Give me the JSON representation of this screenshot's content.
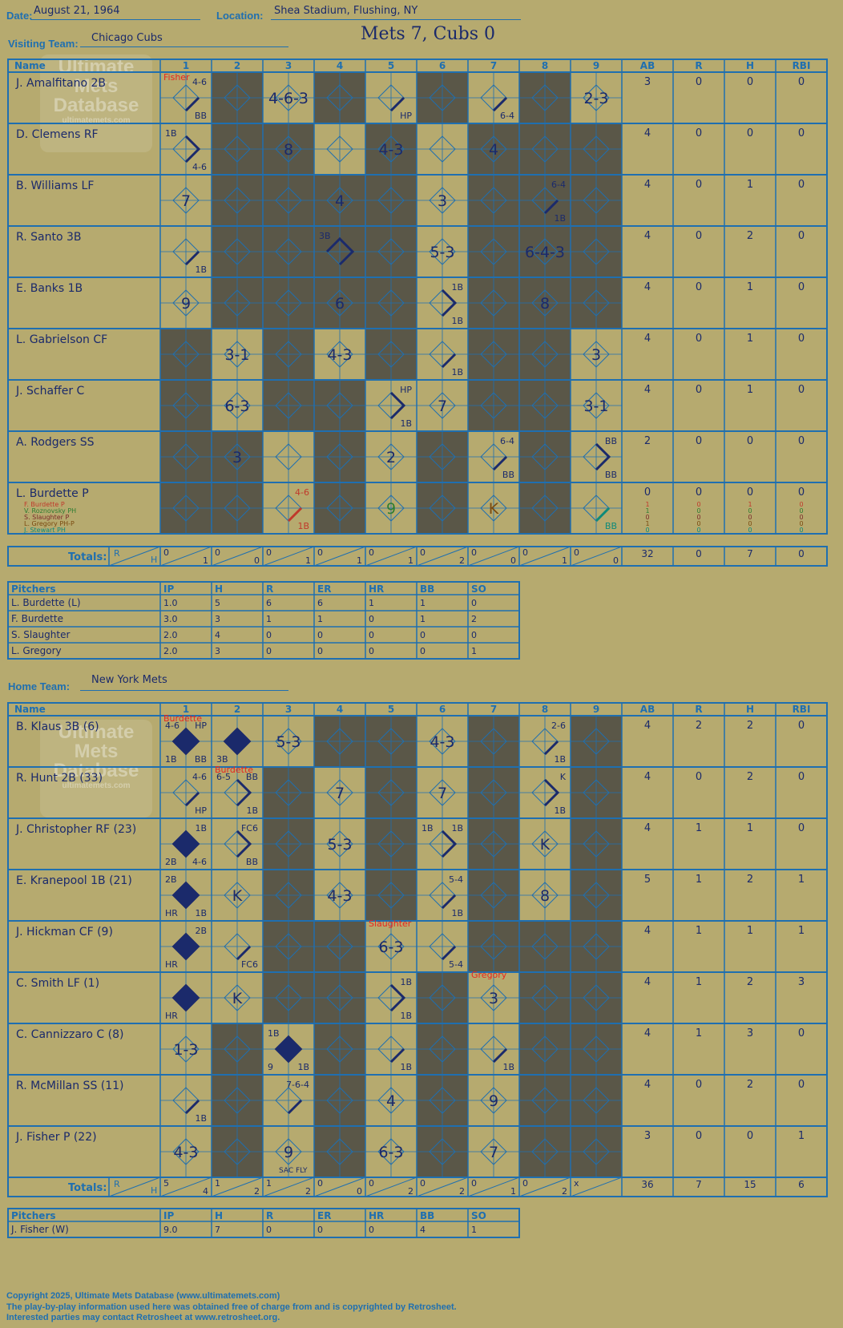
{
  "header": {
    "date_label": "Date:",
    "date": "August 21, 1964",
    "location_label": "Location:",
    "location": "Shea Stadium, Flushing, NY",
    "score_title": "Mets 7, Cubs 0",
    "watermark": [
      "Ultimate",
      "Mets",
      "Database",
      "ultimatemets.com"
    ]
  },
  "visiting": {
    "team_label": "Visiting Team:",
    "team_name": "Chicago Cubs",
    "columns": [
      "Name",
      "1",
      "2",
      "3",
      "4",
      "5",
      "6",
      "7",
      "8",
      "9",
      "AB",
      "R",
      "H",
      "RBI"
    ],
    "shaded": [
      [
        1,
        3,
        5,
        7
      ],
      [
        1,
        2,
        4,
        6,
        7,
        8
      ],
      [
        1,
        2,
        3,
        4,
        6,
        7,
        8
      ],
      [
        1,
        2,
        3,
        4,
        6,
        7,
        8
      ],
      [
        1,
        2,
        3,
        4,
        6,
        7,
        8
      ],
      [
        0,
        2,
        4,
        6,
        7
      ],
      [
        0,
        2,
        3,
        6,
        7
      ],
      [
        0,
        1,
        3,
        5,
        7
      ],
      [
        0,
        1,
        3,
        5,
        7
      ]
    ],
    "batters": [
      {
        "name": "J. Amalfitano 2B",
        "ab": "3",
        "r": "0",
        "h": "0",
        "rbi": "0",
        "plays": [
          {
            "inn": 0,
            "tl": "",
            "tr": "4-6",
            "bl": "",
            "br": "BB",
            "center": "",
            "base": 1
          },
          {
            "inn": 2,
            "center": "4-6-3"
          },
          {
            "inn": 4,
            "br": "HP",
            "base": 1
          },
          {
            "inn": 6,
            "br": "6-4",
            "base": 1
          },
          {
            "inn": 8,
            "center": "2-3"
          }
        ]
      },
      {
        "name": "D. Clemens RF",
        "ab": "4",
        "r": "0",
        "h": "0",
        "rbi": "0",
        "plays": [
          {
            "inn": 0,
            "tl": "1B",
            "br": "4-6",
            "base": 2
          },
          {
            "inn": 2,
            "center": "8"
          },
          {
            "inn": 4,
            "center": "4-3"
          },
          {
            "inn": 6,
            "center": "4"
          }
        ]
      },
      {
        "name": "B. Williams LF",
        "ab": "4",
        "r": "0",
        "h": "1",
        "rbi": "0",
        "plays": [
          {
            "inn": 0,
            "center": "7"
          },
          {
            "inn": 3,
            "center": "4"
          },
          {
            "inn": 5,
            "center": "3"
          },
          {
            "inn": 7,
            "tr": "6-4",
            "br": "1B",
            "base": 1
          }
        ]
      },
      {
        "name": "R. Santo 3B",
        "ab": "4",
        "r": "0",
        "h": "2",
        "rbi": "0",
        "plays": [
          {
            "inn": 0,
            "br": "1B",
            "base": 1
          },
          {
            "inn": 3,
            "tl": "3B",
            "base": 3
          },
          {
            "inn": 5,
            "center": "5-3"
          },
          {
            "inn": 7,
            "center": "6-4-3"
          }
        ]
      },
      {
        "name": "E. Banks 1B",
        "ab": "4",
        "r": "0",
        "h": "1",
        "rbi": "0",
        "plays": [
          {
            "inn": 0,
            "center": "9"
          },
          {
            "inn": 3,
            "center": "6"
          },
          {
            "inn": 5,
            "tr": "1B",
            "br": "1B",
            "base": 2
          },
          {
            "inn": 7,
            "center": "8"
          }
        ]
      },
      {
        "name": "L. Gabrielson CF",
        "ab": "4",
        "r": "0",
        "h": "1",
        "rbi": "0",
        "plays": [
          {
            "inn": 1,
            "center": "3-1"
          },
          {
            "inn": 3,
            "center": "4-3"
          },
          {
            "inn": 5,
            "br": "1B",
            "base": 1
          },
          {
            "inn": 8,
            "center": "3"
          }
        ]
      },
      {
        "name": "J. Schaffer C",
        "ab": "4",
        "r": "0",
        "h": "1",
        "rbi": "0",
        "plays": [
          {
            "inn": 1,
            "center": "6-3"
          },
          {
            "inn": 4,
            "tr": "HP",
            "br": "1B",
            "base": 2
          },
          {
            "inn": 5,
            "center": "7"
          },
          {
            "inn": 8,
            "center": "3-1"
          }
        ]
      },
      {
        "name": "A. Rodgers SS",
        "ab": "2",
        "r": "0",
        "h": "0",
        "rbi": "0",
        "plays": [
          {
            "inn": 1,
            "center": "3"
          },
          {
            "inn": 4,
            "center": "2"
          },
          {
            "inn": 6,
            "tr": "6-4",
            "br": "BB",
            "base": 1
          },
          {
            "inn": 8,
            "tr": "BB",
            "br": "BB",
            "base": 2
          }
        ]
      },
      {
        "name": "L. Burdette P",
        "ab": "0",
        "r": "0",
        "h": "0",
        "rbi": "0",
        "plays": [
          {
            "inn": 2,
            "tr": "4-6",
            "br": "1B",
            "base": 1,
            "color": "#c0392b"
          },
          {
            "inn": 4,
            "center": "9",
            "color": "#2e7d32"
          },
          {
            "inn": 6,
            "center": "K",
            "color": "#7a4a10"
          },
          {
            "inn": 8,
            "br": "BB",
            "base": 1,
            "color": "#0e8a7a"
          }
        ],
        "subs": [
          {
            "name": "F. Burdette P",
            "color": "#c0392b",
            "ab": "1",
            "r": "0",
            "h": "1",
            "rbi": "0"
          },
          {
            "name": "V. Roznovsky PH",
            "color": "#2e7d32",
            "ab": "1",
            "r": "0",
            "h": "0",
            "rbi": "0"
          },
          {
            "name": "S. Slaughter P",
            "color": "#7a2a2a",
            "ab": "0",
            "r": "0",
            "h": "0",
            "rbi": "0"
          },
          {
            "name": "L. Gregory PH-P",
            "color": "#7a4a10",
            "ab": "1",
            "r": "0",
            "h": "0",
            "rbi": "0"
          },
          {
            "name": "J. Stewart PH",
            "color": "#0e8a7a",
            "ab": "0",
            "r": "0",
            "h": "0",
            "rbi": "0"
          }
        ]
      }
    ],
    "totals_label": "Totals:",
    "totals_r_label": "R",
    "totals_h_label": "H",
    "totals": [
      [
        "0",
        "1"
      ],
      [
        "0",
        "0"
      ],
      [
        "0",
        "1"
      ],
      [
        "0",
        "1"
      ],
      [
        "0",
        "1"
      ],
      [
        "0",
        "2"
      ],
      [
        "0",
        "0"
      ],
      [
        "0",
        "1"
      ],
      [
        "0",
        "0"
      ]
    ],
    "totals_summary": [
      "32",
      "0",
      "7",
      "0"
    ],
    "pitchers_header": [
      "Pitchers",
      "IP",
      "H",
      "R",
      "ER",
      "HR",
      "BB",
      "SO"
    ],
    "pitchers": [
      [
        "L. Burdette (L)",
        "1.0",
        "5",
        "6",
        "6",
        "1",
        "1",
        "0"
      ],
      [
        "F. Burdette",
        "3.0",
        "3",
        "1",
        "1",
        "0",
        "1",
        "2"
      ],
      [
        "S. Slaughter",
        "2.0",
        "4",
        "0",
        "0",
        "0",
        "0",
        "0"
      ],
      [
        "L. Gregory",
        "2.0",
        "3",
        "0",
        "0",
        "0",
        "0",
        "1"
      ]
    ]
  },
  "home": {
    "team_label": "Home Team:",
    "team_name": "New York Mets",
    "columns": [
      "Name",
      "1",
      "2",
      "3",
      "4",
      "5",
      "6",
      "7",
      "8",
      "9",
      "AB",
      "R",
      "H",
      "RBI"
    ],
    "shaded": [
      [
        3,
        4,
        6,
        8
      ],
      [
        2,
        4,
        6,
        8
      ],
      [
        2,
        4,
        6,
        8
      ],
      [
        2,
        4,
        6,
        8
      ],
      [
        2,
        3,
        6,
        7,
        8
      ],
      [
        2,
        3,
        5,
        7,
        8
      ],
      [
        1,
        3,
        5,
        7,
        8
      ],
      [
        1,
        3,
        5,
        7,
        8
      ],
      [
        1,
        3,
        5,
        7,
        8
      ]
    ],
    "batters": [
      {
        "name": "B. Klaus 3B (6)",
        "ab": "4",
        "r": "2",
        "h": "2",
        "rbi": "0",
        "note": "Burdette",
        "noteInn": 0,
        "plays": [
          {
            "inn": 0,
            "tl": "4-6",
            "tr": "HP",
            "bl": "1B",
            "br": "BB",
            "base": 4
          },
          {
            "inn": 1,
            "bl": "3B",
            "base": 4
          },
          {
            "inn": 2,
            "center": "5-3"
          },
          {
            "inn": 5,
            "center": "4-3"
          },
          {
            "inn": 7,
            "tr": "2-6",
            "br": "1B",
            "base": 1
          }
        ]
      },
      {
        "name": "R. Hunt 2B (33)",
        "ab": "4",
        "r": "0",
        "h": "2",
        "rbi": "0",
        "note": "Burdette",
        "noteInn": 1,
        "plays": [
          {
            "inn": 0,
            "tr": "4-6",
            "br": "HP",
            "base": 1
          },
          {
            "inn": 1,
            "tl": "6-5",
            "tr": "BB",
            "br": "1B",
            "base": 2
          },
          {
            "inn": 3,
            "center": "7"
          },
          {
            "inn": 5,
            "center": "7"
          },
          {
            "inn": 7,
            "tr": "K",
            "br": "1B",
            "base": 2
          }
        ]
      },
      {
        "name": "J. Christopher RF (23)",
        "ab": "4",
        "r": "1",
        "h": "1",
        "rbi": "0",
        "plays": [
          {
            "inn": 0,
            "tr": "1B",
            "bl": "2B",
            "br": "4-6",
            "base": 4
          },
          {
            "inn": 1,
            "tr": "FC6",
            "br": "BB",
            "base": 2
          },
          {
            "inn": 3,
            "center": "5-3"
          },
          {
            "inn": 5,
            "tl": "1B",
            "tr": "1B",
            "base": 2
          },
          {
            "inn": 7,
            "center": "K"
          }
        ]
      },
      {
        "name": "E. Kranepool 1B (21)",
        "ab": "5",
        "r": "1",
        "h": "2",
        "rbi": "1",
        "plays": [
          {
            "inn": 0,
            "tl": "2B",
            "bl": "HR",
            "br": "1B",
            "base": 4
          },
          {
            "inn": 1,
            "center": "K"
          },
          {
            "inn": 3,
            "center": "4-3"
          },
          {
            "inn": 5,
            "tr": "5-4",
            "br": "1B",
            "base": 1
          },
          {
            "inn": 7,
            "center": "8"
          }
        ]
      },
      {
        "name": "J. Hickman CF (9)",
        "ab": "4",
        "r": "1",
        "h": "1",
        "rbi": "1",
        "note": "Slaughter",
        "noteInn": 4,
        "plays": [
          {
            "inn": 0,
            "tr": "2B",
            "bl": "HR",
            "base": 4
          },
          {
            "inn": 1,
            "br": "FC6",
            "base": 1
          },
          {
            "inn": 4,
            "center": "6-3"
          },
          {
            "inn": 5,
            "br": "5-4",
            "base": 1
          }
        ]
      },
      {
        "name": "C. Smith LF (1)",
        "ab": "4",
        "r": "1",
        "h": "2",
        "rbi": "3",
        "note": "Gregory",
        "noteInn": 6,
        "plays": [
          {
            "inn": 0,
            "bl": "HR",
            "base": 4
          },
          {
            "inn": 1,
            "center": "K"
          },
          {
            "inn": 4,
            "tr": "1B",
            "br": "1B",
            "base": 2
          },
          {
            "inn": 6,
            "center": "3"
          }
        ]
      },
      {
        "name": "C. Cannizzaro C (8)",
        "ab": "4",
        "r": "1",
        "h": "3",
        "rbi": "0",
        "plays": [
          {
            "inn": 0,
            "center": "1-3"
          },
          {
            "inn": 2,
            "tl": "1B",
            "bl": "9",
            "br": "1B",
            "base": 4
          },
          {
            "inn": 4,
            "br": "1B",
            "base": 1
          },
          {
            "inn": 6,
            "br": "1B",
            "base": 1
          }
        ]
      },
      {
        "name": "R. McMillan SS (11)",
        "ab": "4",
        "r": "0",
        "h": "2",
        "rbi": "0",
        "plays": [
          {
            "inn": 0,
            "br": "1B",
            "base": 1
          },
          {
            "inn": 2,
            "tr": "7-6-4",
            "base": 1
          },
          {
            "inn": 4,
            "center": "4"
          },
          {
            "inn": 6,
            "center": "9"
          }
        ]
      },
      {
        "name": "J. Fisher P (22)",
        "ab": "3",
        "r": "0",
        "h": "0",
        "rbi": "1",
        "plays": [
          {
            "inn": 0,
            "center": "4-3"
          },
          {
            "inn": 2,
            "center": "9",
            "bl": "SAC FLY"
          },
          {
            "inn": 4,
            "center": "6-3"
          },
          {
            "inn": 6,
            "center": "7"
          }
        ]
      }
    ],
    "totals_label": "Totals:",
    "totals_r_label": "R",
    "totals_h_label": "H",
    "totals": [
      [
        "5",
        "4"
      ],
      [
        "1",
        "2"
      ],
      [
        "1",
        "2"
      ],
      [
        "0",
        "0"
      ],
      [
        "0",
        "2"
      ],
      [
        "0",
        "2"
      ],
      [
        "0",
        "1"
      ],
      [
        "0",
        "2"
      ],
      [
        "x",
        ""
      ]
    ],
    "totals_summary": [
      "36",
      "7",
      "15",
      "6"
    ],
    "pitchers_header": [
      "Pitchers",
      "IP",
      "H",
      "R",
      "ER",
      "HR",
      "BB",
      "SO"
    ],
    "pitchers": [
      [
        "J. Fisher (W)",
        "9.0",
        "7",
        "0",
        "0",
        "0",
        "4",
        "1"
      ]
    ]
  },
  "visiting_note": {
    "text": "Fisher",
    "inn": 0
  },
  "footer": {
    "line1": "Copyright 2025, Ultimate Mets Database (www.ultimatemets.com)",
    "line2": "The play-by-play information used here was obtained free of charge from and is copyrighted by Retrosheet.",
    "line3": "Interested parties may contact Retrosheet at www.retrosheet.org."
  },
  "colors": {
    "grid": "#1f6fb0",
    "ink": "#1b2a6b",
    "shade": "#5a5748",
    "paper": "#b6aa6f",
    "note": "#e8261f"
  }
}
